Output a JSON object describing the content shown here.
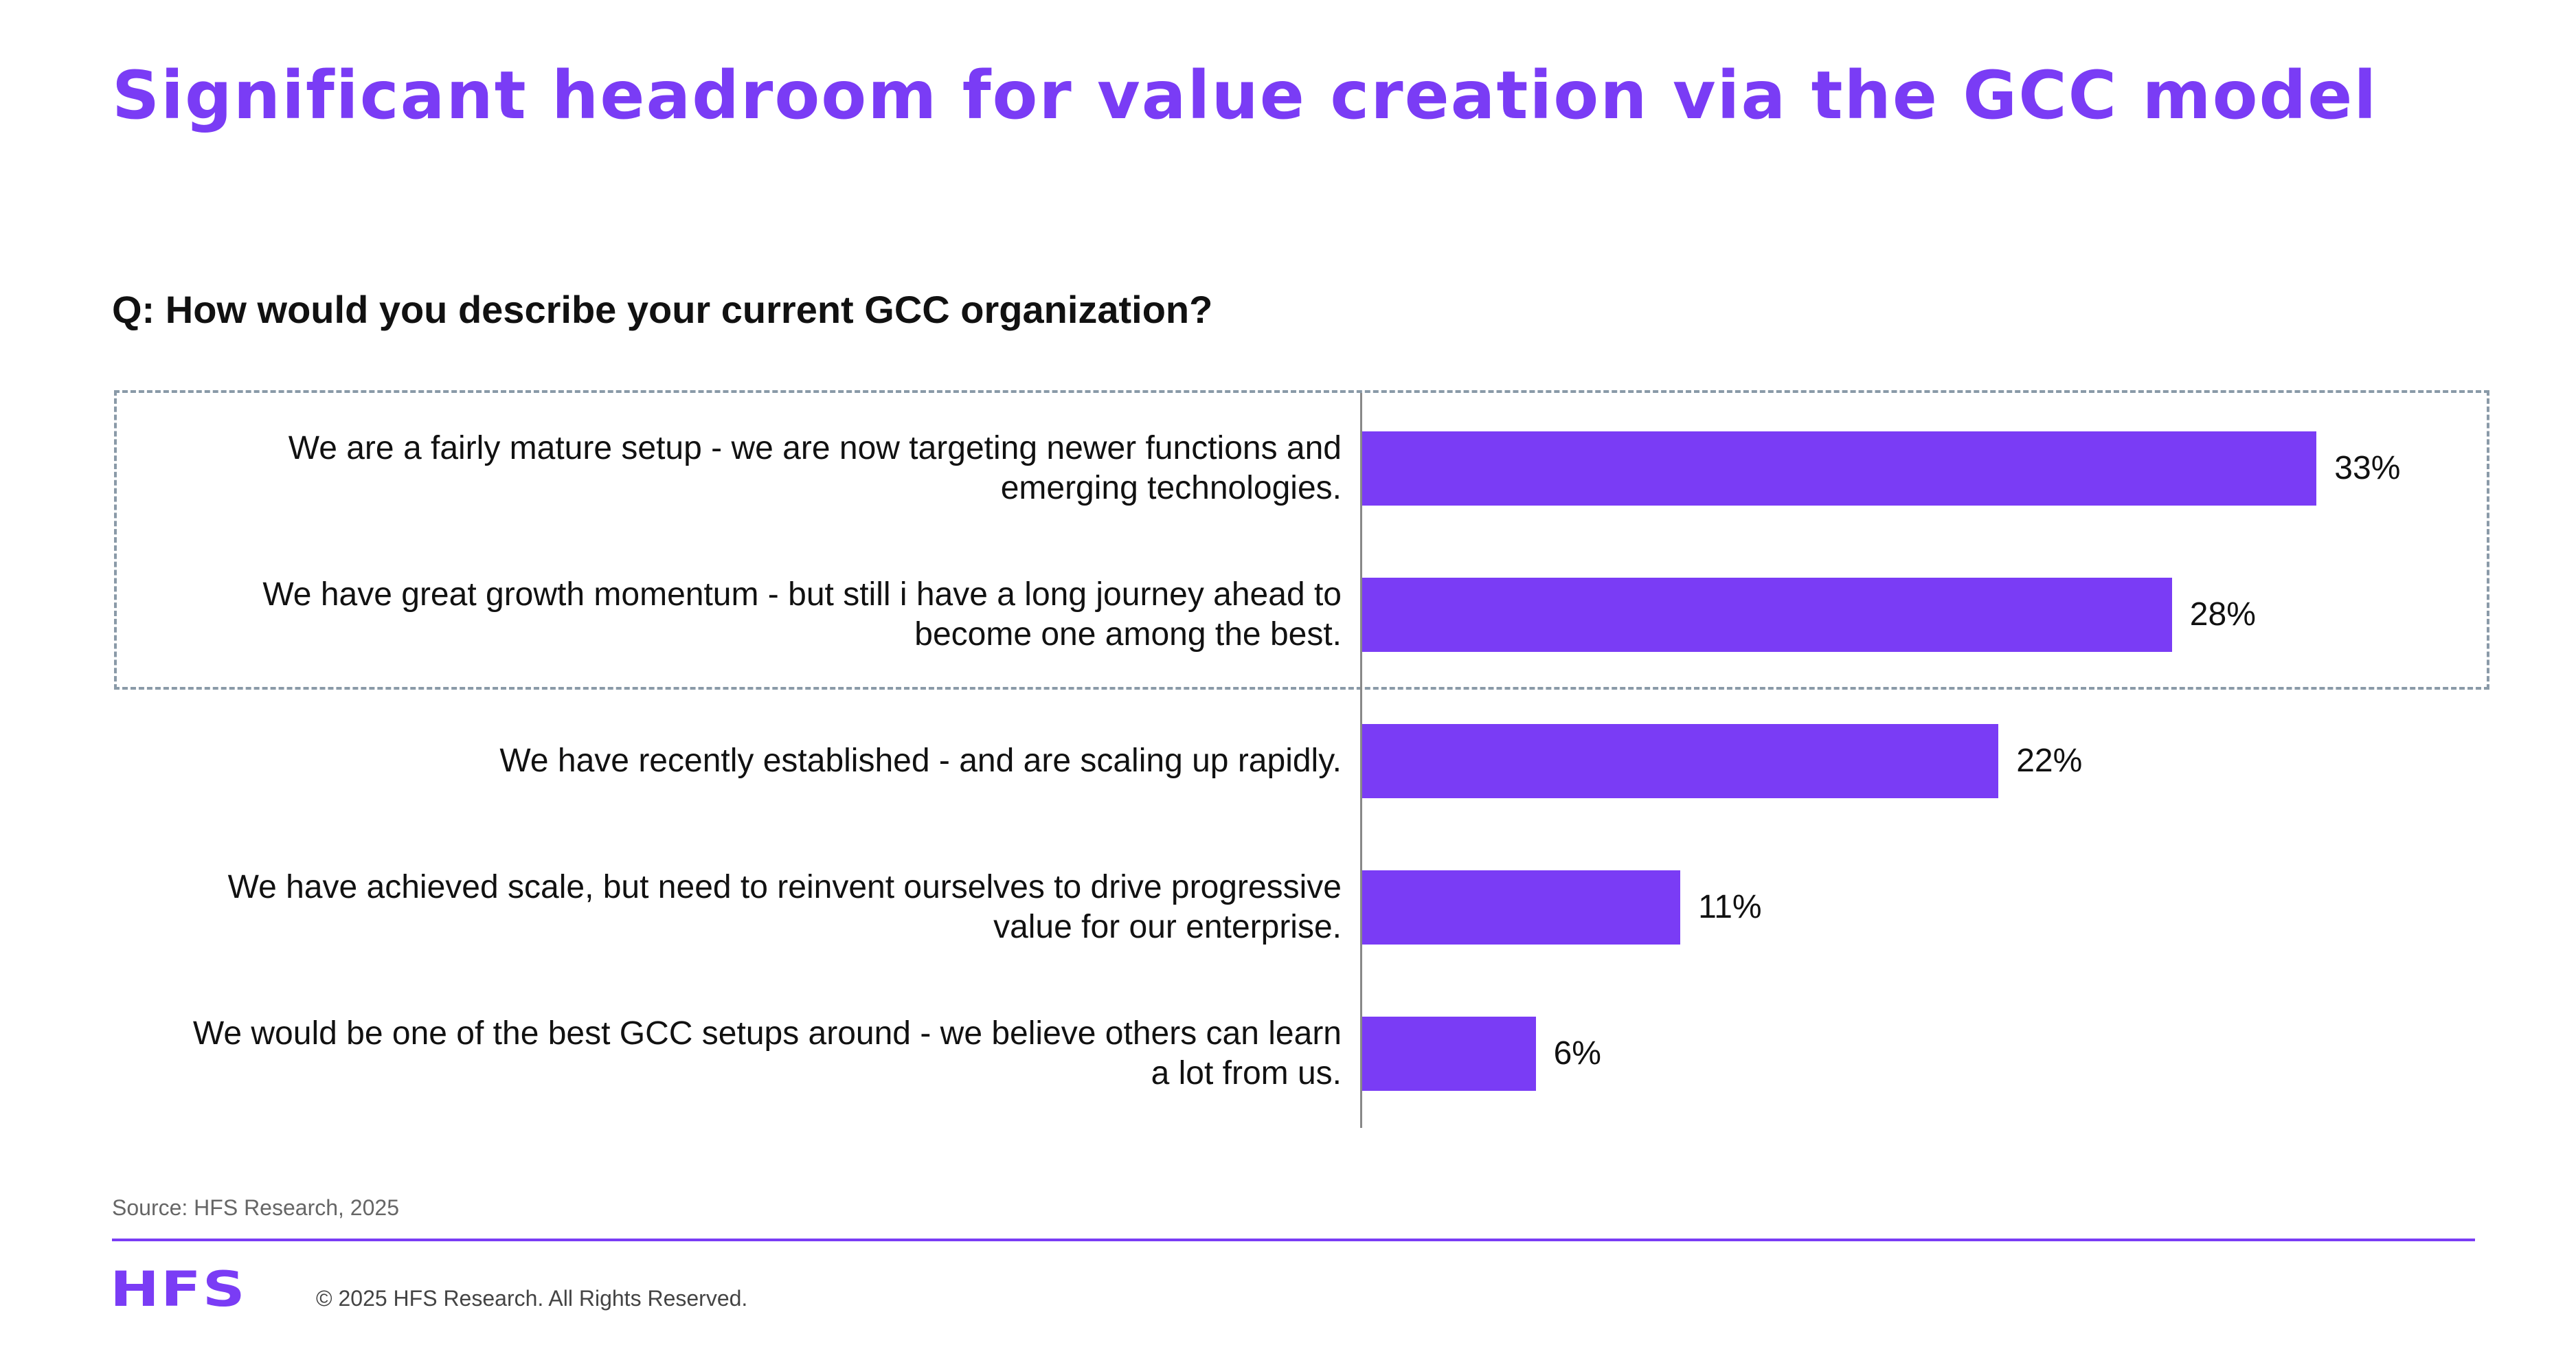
{
  "title": "Significant headroom for value creation via the GCC model",
  "question": "Q: How would you describe your current GCC organization?",
  "colors": {
    "accent": "#7a3cf5",
    "box_border": "#8a9aa8"
  },
  "chart_data": {
    "type": "bar",
    "orientation": "horizontal",
    "categories": [
      "We are a fairly mature setup - we are now targeting newer functions and emerging technologies.",
      "We have great growth momentum - but still i have a long journey ahead to become one among the best.",
      "We have recently established - and are scaling up rapidly.",
      "We have achieved scale, but need to reinvent ourselves to drive progressive value for our enterprise.",
      "We would be one of the best GCC setups around - we believe others can learn a lot from us."
    ],
    "values": [
      33,
      28,
      22,
      11,
      6
    ],
    "value_labels": [
      "33%",
      "28%",
      "22%",
      "11%",
      "6%"
    ],
    "unit": "%",
    "highlighted_categories": [
      0,
      1
    ],
    "grid": false
  },
  "footer": {
    "source": "Source: HFS Research, 2025",
    "logo_text": "HFS",
    "copyright": "© 2025 HFS Research. All Rights Reserved."
  }
}
